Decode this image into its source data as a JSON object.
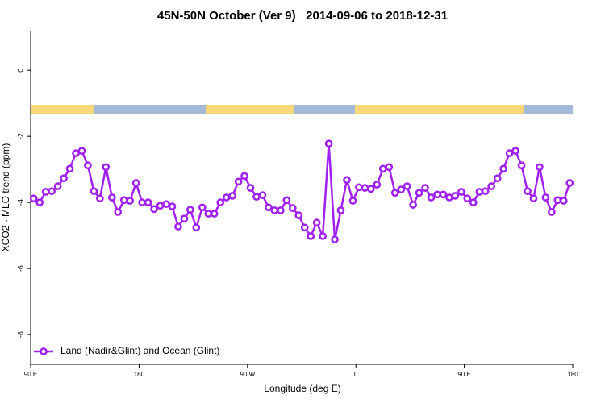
{
  "chart_data": {
    "type": "line",
    "title": "45N-50N October (Ver 9)   2014-09-06 to 2018-12-31",
    "x_label": "Longitude (deg E)",
    "y_label": "XCO2 - MLO trend (ppm)",
    "xlim": [
      90,
      540
    ],
    "xticks": [
      {
        "value": 90,
        "label": "90 E"
      },
      180,
      {
        "value": 270,
        "label": "90 W"
      },
      {
        "value": 360,
        "label": "0"
      },
      {
        "value": 450,
        "label": "90 E"
      },
      {
        "value": 540,
        "label": "180"
      }
    ],
    "ylim": [
      1.2,
      -8.9
    ],
    "yticks": [
      0,
      -2,
      -4,
      -6,
      -8
    ],
    "legend": "bottom-left",
    "x": [
      92.5,
      97.5,
      102.5,
      107.5,
      112.5,
      117.5,
      122.5,
      127.5,
      132.5,
      137.5,
      142.5,
      147.5,
      152.5,
      157.5,
      162.5,
      167.5,
      172.5,
      177.5,
      182.5,
      187.5,
      192.5,
      197.5,
      202.5,
      207.5,
      212.5,
      217.5,
      222.5,
      227.5,
      232.5,
      237.5,
      242.5,
      247.5,
      252.5,
      257.5,
      262.5,
      267.5,
      272.5,
      277.5,
      282.5,
      287.5,
      292.5,
      297.5,
      302.5,
      307.5,
      312.5,
      317.5,
      322.5,
      327.5,
      332.5,
      337.5,
      342.5,
      347.5,
      352.5,
      357.5,
      362.5,
      367.5,
      372.5,
      377.5,
      382.5,
      387.5,
      392.5,
      397.5,
      402.5,
      407.5,
      412.5,
      417.5,
      422.5,
      427.5,
      432.5,
      437.5,
      442.5,
      447.5,
      452.5,
      457.5,
      462.5,
      467.5,
      472.5,
      477.5,
      482.5,
      487.5,
      492.5,
      497.5,
      502.5,
      507.5,
      512.5,
      517.5,
      522.5,
      527.5,
      532.5,
      537.5
    ],
    "series": [
      {
        "name": "Land (Nadir&Glint) and Ocean (Glint)",
        "color": "#a020f0",
        "values": [
          -3.88,
          -4.0,
          -3.68,
          -3.66,
          -3.51,
          -3.27,
          -2.98,
          -2.51,
          -2.44,
          -2.88,
          -3.66,
          -3.88,
          -2.93,
          -3.85,
          -4.29,
          -3.93,
          -3.95,
          -3.41,
          -4.0,
          -4.0,
          -4.2,
          -4.1,
          -4.05,
          -4.12,
          -4.73,
          -4.49,
          -4.22,
          -4.76,
          -4.15,
          -4.34,
          -4.34,
          -4.0,
          -3.85,
          -3.8,
          -3.37,
          -3.2,
          -3.56,
          -3.83,
          -3.78,
          -4.15,
          -4.24,
          -4.24,
          -3.93,
          -4.17,
          -4.39,
          -4.76,
          -5.02,
          -4.61,
          -5.02,
          -2.22,
          -5.12,
          -4.24,
          -3.32,
          -3.95,
          -3.54,
          -3.56,
          -3.59,
          -3.46,
          -2.98,
          -2.93,
          -3.71,
          -3.61,
          -3.51,
          -4.07,
          -3.71,
          -3.56,
          -3.85,
          -3.76,
          -3.76,
          -3.85,
          -3.8,
          -3.68,
          -3.88,
          -4.0,
          -3.68,
          -3.66,
          -3.51,
          -3.27,
          -2.98,
          -2.51,
          -2.44,
          -2.88,
          -3.66,
          -3.88,
          -2.93,
          -3.85,
          -4.29,
          -3.93,
          -3.95,
          -3.41
        ]
      }
    ]
  }
}
